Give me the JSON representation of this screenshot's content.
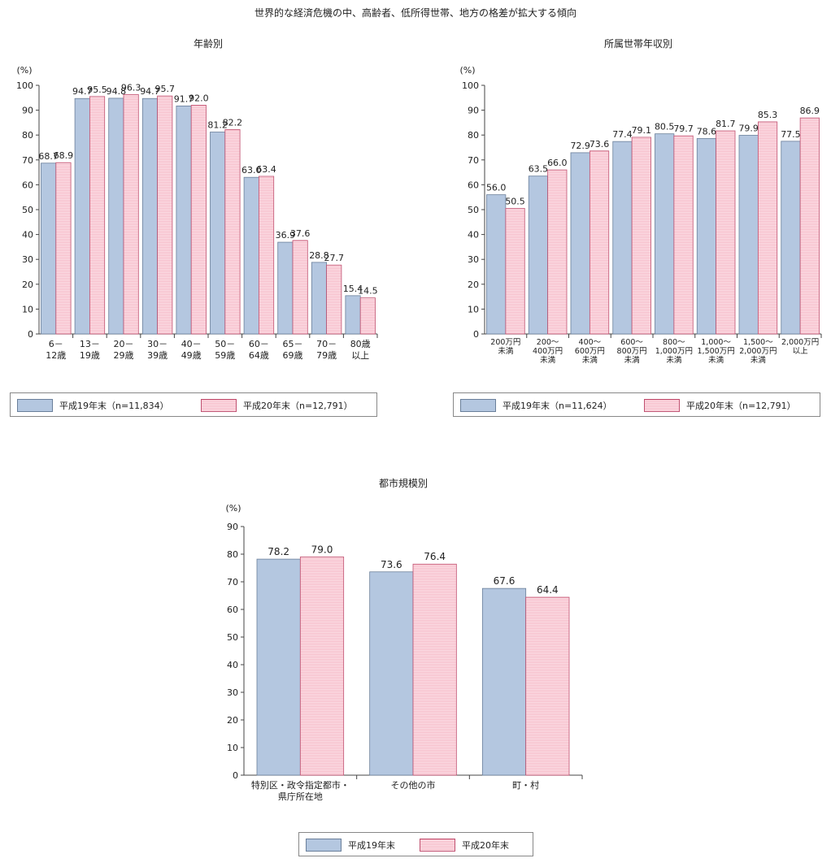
{
  "title": "世界的な経済危機の中、高齢者、低所得世帯、地方の格差が拡大する傾向",
  "colors": {
    "series1": "#b4c7e0",
    "series2": "#f5b6c4",
    "series2_stripe": "#fde6ec"
  },
  "chart_data": [
    {
      "type": "bar",
      "title": "年齢別",
      "ylabel": "(%)",
      "ylim": [
        0,
        100
      ],
      "ytick_step": 10,
      "categories": [
        [
          "6－",
          "12歳"
        ],
        [
          "13－",
          "19歳"
        ],
        [
          "20－",
          "29歳"
        ],
        [
          "30－",
          "39歳"
        ],
        [
          "40－",
          "49歳"
        ],
        [
          "50－",
          "59歳"
        ],
        [
          "60－",
          "64歳"
        ],
        [
          "65－",
          "69歳"
        ],
        [
          "70－",
          "79歳"
        ],
        [
          "80歳",
          "以上"
        ]
      ],
      "series": [
        {
          "name": "平成19年末",
          "values": [
            68.7,
            94.7,
            94.8,
            94.7,
            91.7,
            81.2,
            63.0,
            36.9,
            28.8,
            15.4
          ]
        },
        {
          "name": "平成20年末",
          "values": [
            68.9,
            95.5,
            96.3,
            95.7,
            92.0,
            82.2,
            63.4,
            37.6,
            27.7,
            14.5
          ]
        }
      ],
      "legend": [
        "平成19年末（n=11,834）",
        "平成20年末（n=12,791）"
      ]
    },
    {
      "type": "bar",
      "title": "所属世帯年収別",
      "ylabel": "(%)",
      "ylim": [
        0,
        100
      ],
      "ytick_step": 10,
      "categories": [
        [
          "200万円",
          "未満"
        ],
        [
          "200～",
          "400万円",
          "未満"
        ],
        [
          "400～",
          "600万円",
          "未満"
        ],
        [
          "600～",
          "800万円",
          "未満"
        ],
        [
          "800～",
          "1,000万円",
          "未満"
        ],
        [
          "1,000～",
          "1,500万円",
          "未満"
        ],
        [
          "1,500～",
          "2,000万円",
          "未満"
        ],
        [
          "2,000万円",
          "以上"
        ]
      ],
      "series": [
        {
          "name": "平成19年末",
          "values": [
            56.0,
            63.5,
            72.9,
            77.4,
            80.5,
            78.6,
            79.9,
            77.5
          ]
        },
        {
          "name": "平成20年末",
          "values": [
            50.5,
            66.0,
            73.6,
            79.1,
            79.7,
            81.7,
            85.3,
            86.9
          ]
        }
      ],
      "legend": [
        "平成19年末（n=11,624）",
        "平成20年末（n=12,791）"
      ]
    },
    {
      "type": "bar",
      "title": "都市規模別",
      "ylabel": "(%)",
      "ylim": [
        0,
        90
      ],
      "ytick_step": 10,
      "categories": [
        [
          "特別区・政令指定都市・",
          "県庁所在地"
        ],
        [
          "その他の市"
        ],
        [
          "町・村"
        ]
      ],
      "series": [
        {
          "name": "平成19年末",
          "values": [
            78.2,
            73.6,
            67.6
          ]
        },
        {
          "name": "平成20年末",
          "values": [
            79.0,
            76.4,
            64.4
          ]
        }
      ],
      "legend": [
        "平成19年末",
        "平成20年末"
      ]
    }
  ]
}
